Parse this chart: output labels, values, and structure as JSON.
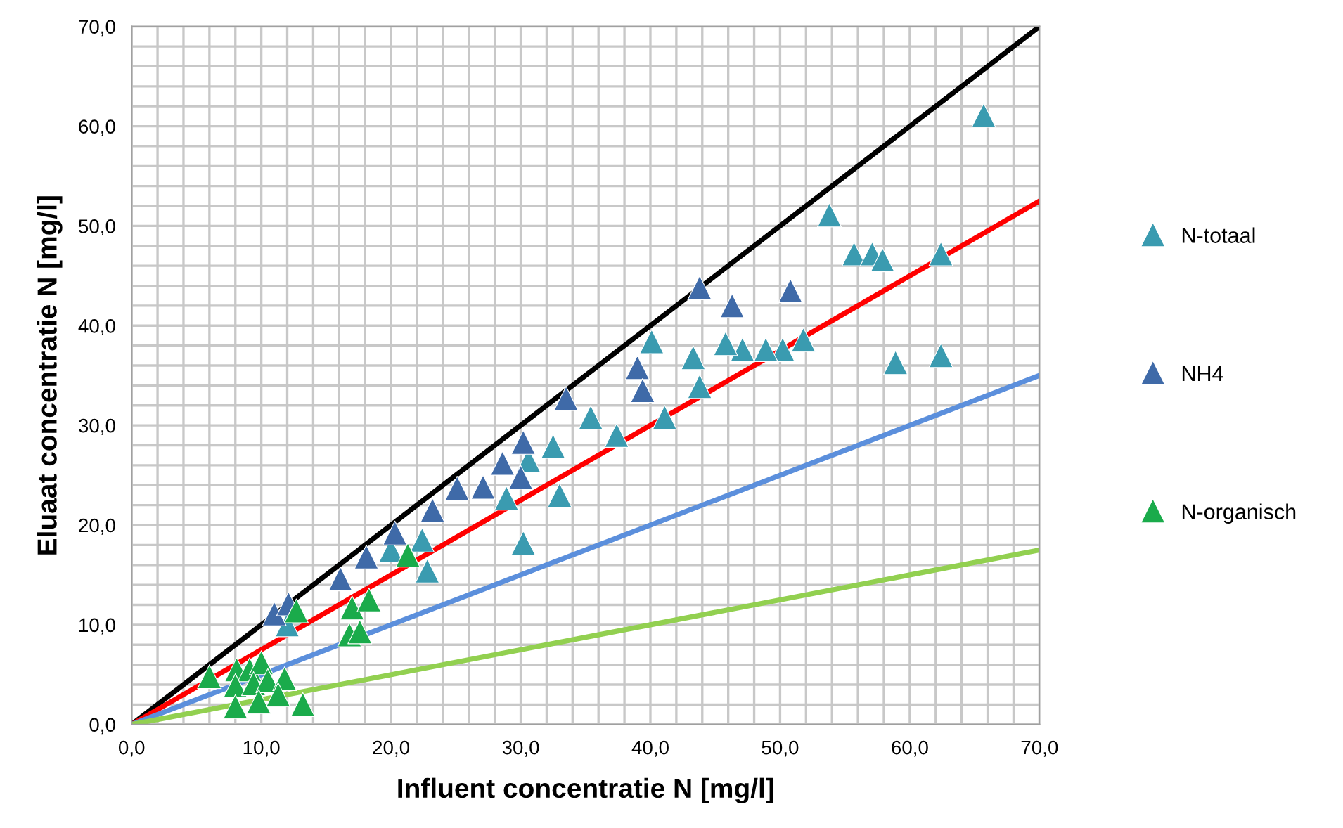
{
  "chart_data": {
    "type": "scatter",
    "xlabel": "Influent concentratie N [mg/l]",
    "ylabel": "Eluaat concentratie N [mg/l]",
    "xlim": [
      0,
      70
    ],
    "ylim": [
      0,
      70
    ],
    "xticks": [
      {
        "value": 0,
        "label": "0,0"
      },
      {
        "value": 2,
        "label": null
      },
      {
        "value": 4,
        "label": null
      },
      {
        "value": 6,
        "label": null
      },
      {
        "value": 8,
        "label": null
      },
      {
        "value": 10,
        "label": "10,0"
      },
      {
        "value": 12,
        "label": null
      },
      {
        "value": 14,
        "label": null
      },
      {
        "value": 16,
        "label": null
      },
      {
        "value": 18,
        "label": null
      },
      {
        "value": 20,
        "label": "20,0"
      },
      {
        "value": 22,
        "label": null
      },
      {
        "value": 24,
        "label": null
      },
      {
        "value": 26,
        "label": null
      },
      {
        "value": 28,
        "label": null
      },
      {
        "value": 30,
        "label": "30,0"
      },
      {
        "value": 32,
        "label": null
      },
      {
        "value": 34,
        "label": null
      },
      {
        "value": 36,
        "label": null
      },
      {
        "value": 38,
        "label": null
      },
      {
        "value": 40,
        "label": "40,0"
      },
      {
        "value": 42,
        "label": null
      },
      {
        "value": 44,
        "label": null
      },
      {
        "value": 46,
        "label": null
      },
      {
        "value": 48,
        "label": null
      },
      {
        "value": 50,
        "label": "50,0"
      },
      {
        "value": 52,
        "label": null
      },
      {
        "value": 54,
        "label": null
      },
      {
        "value": 56,
        "label": null
      },
      {
        "value": 58,
        "label": null
      },
      {
        "value": 60,
        "label": "60,0"
      },
      {
        "value": 62,
        "label": null
      },
      {
        "value": 64,
        "label": null
      },
      {
        "value": 66,
        "label": null
      },
      {
        "value": 68,
        "label": null
      },
      {
        "value": 70,
        "label": "70,0"
      }
    ],
    "yticks": [
      {
        "value": 0,
        "label": "0,0"
      },
      {
        "value": 2,
        "label": null
      },
      {
        "value": 4,
        "label": null
      },
      {
        "value": 6,
        "label": null
      },
      {
        "value": 8,
        "label": null
      },
      {
        "value": 10,
        "label": "10,0"
      },
      {
        "value": 12,
        "label": null
      },
      {
        "value": 14,
        "label": null
      },
      {
        "value": 16,
        "label": null
      },
      {
        "value": 18,
        "label": null
      },
      {
        "value": 20,
        "label": "20,0"
      },
      {
        "value": 22,
        "label": null
      },
      {
        "value": 24,
        "label": null
      },
      {
        "value": 26,
        "label": null
      },
      {
        "value": 28,
        "label": null
      },
      {
        "value": 30,
        "label": "30,0"
      },
      {
        "value": 32,
        "label": null
      },
      {
        "value": 34,
        "label": null
      },
      {
        "value": 36,
        "label": null
      },
      {
        "value": 38,
        "label": null
      },
      {
        "value": 40,
        "label": "40,0"
      },
      {
        "value": 42,
        "label": null
      },
      {
        "value": 44,
        "label": null
      },
      {
        "value": 46,
        "label": null
      },
      {
        "value": 48,
        "label": null
      },
      {
        "value": 50,
        "label": "50,0"
      },
      {
        "value": 52,
        "label": null
      },
      {
        "value": 54,
        "label": null
      },
      {
        "value": 56,
        "label": null
      },
      {
        "value": 58,
        "label": null
      },
      {
        "value": 60,
        "label": "60,0"
      },
      {
        "value": 62,
        "label": null
      },
      {
        "value": 64,
        "label": null
      },
      {
        "value": 66,
        "label": null
      },
      {
        "value": 68,
        "label": null
      },
      {
        "value": 70,
        "label": "70,0"
      }
    ],
    "grid": true,
    "legend": "right",
    "series": [
      {
        "type": "line",
        "marker": "none",
        "color": "#000000",
        "x": [
          0,
          70
        ],
        "values": [
          0,
          70
        ]
      },
      {
        "type": "line",
        "marker": "none",
        "color": "#ff0000",
        "x": [
          0,
          70
        ],
        "values": [
          0,
          52.5
        ]
      },
      {
        "type": "line",
        "marker": "none",
        "color": "#5b8fdc",
        "x": [
          0,
          70
        ],
        "values": [
          0,
          35
        ]
      },
      {
        "type": "line",
        "marker": "none",
        "color": "#92d050",
        "x": [
          0,
          70
        ],
        "values": [
          0,
          17.5
        ]
      },
      {
        "name": "N-totaal",
        "marker": "triangle",
        "color": "#3a9bb0",
        "x": [
          65.7,
          53.8,
          55.7,
          57.1,
          57.9,
          62.4,
          58.9,
          62.4,
          51.8,
          50.2,
          48.9,
          47.1,
          45.8,
          43.3,
          43.8,
          40.1,
          41.1,
          37.4,
          35.4,
          32.5,
          33.0,
          30.6,
          28.9,
          30.2,
          22.4,
          22.8,
          20.0,
          12.0
        ],
        "values": [
          61.1,
          51.1,
          47.2,
          47.2,
          46.6,
          47.2,
          36.3,
          37.0,
          38.6,
          37.6,
          37.6,
          37.6,
          38.2,
          36.8,
          33.9,
          38.4,
          30.8,
          29.0,
          30.8,
          27.9,
          23.0,
          26.5,
          22.7,
          18.2,
          18.5,
          15.4,
          17.5,
          10.0
        ]
      },
      {
        "name": "NH4",
        "marker": "triangle",
        "color": "#3f6aa8",
        "x": [
          43.8,
          46.3,
          50.8,
          39.0,
          39.4,
          33.5,
          30.2,
          28.6,
          30.0,
          27.1,
          25.1,
          23.2,
          20.3,
          18.1,
          16.1,
          11.0,
          12.1
        ],
        "values": [
          43.8,
          42.0,
          43.5,
          35.8,
          33.5,
          32.7,
          28.3,
          26.2,
          24.8,
          23.8,
          23.7,
          21.5,
          19.2,
          16.8,
          14.6,
          11.1,
          12.1
        ]
      },
      {
        "name": "N-organisch",
        "marker": "triangle",
        "color": "#1aab4b",
        "x": [
          6.0,
          8.1,
          9.1,
          10.0,
          8.0,
          9.4,
          10.5,
          11.8,
          9.8,
          8.0,
          11.3,
          13.2,
          12.7,
          17.0,
          18.3,
          16.8,
          17.6,
          21.3
        ],
        "values": [
          4.8,
          5.5,
          5.5,
          6.2,
          3.9,
          4.1,
          4.4,
          4.6,
          2.3,
          1.8,
          3.0,
          2.0,
          11.4,
          11.7,
          12.5,
          9.0,
          9.3,
          17.0
        ]
      }
    ]
  }
}
